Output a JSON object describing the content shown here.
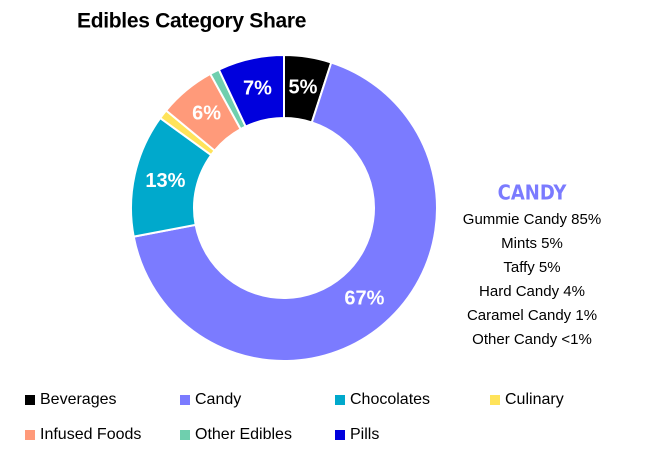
{
  "chart_data": {
    "type": "donut",
    "title": "Edibles Category Share",
    "categories": [
      "Beverages",
      "Candy",
      "Chocolates",
      "Culinary",
      "Infused Foods",
      "Other Edibles",
      "Pills"
    ],
    "values": [
      5,
      67,
      13,
      1,
      6,
      1,
      7
    ],
    "value_labels": [
      "5%",
      "67%",
      "13%",
      null,
      "6%",
      null,
      "7%"
    ],
    "colors": [
      "#000000",
      "#7b7bff",
      "#00a9cc",
      "#ffe35a",
      "#ff9a7a",
      "#6fcfae",
      "#0000dd"
    ],
    "annotation": {
      "title": "CANDY",
      "lines": [
        "Gummie Candy 85%",
        "Mints 5%",
        "Taffy 5%",
        "Hard Candy 4%",
        "Caramel Candy 1%",
        "Other Candy <1%"
      ]
    },
    "legend": "bottom"
  }
}
